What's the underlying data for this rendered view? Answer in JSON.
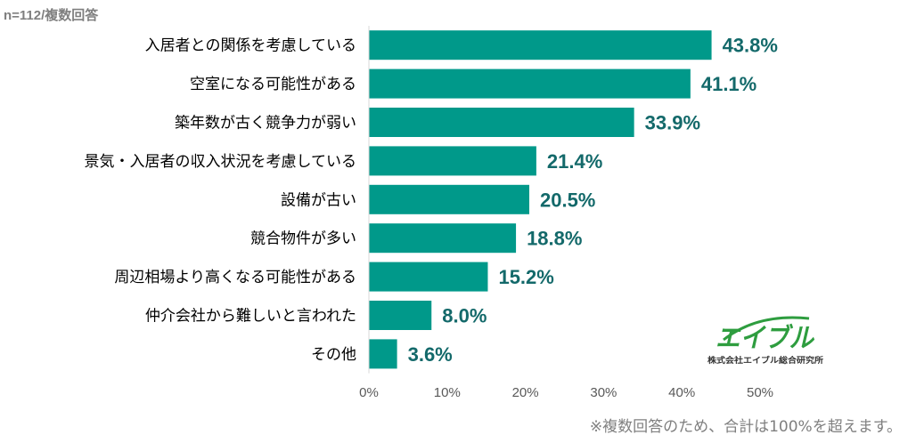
{
  "note_top": "n=112/複数回答",
  "footnote": "※複数回答のため、合計は100%を超えます。",
  "logo": {
    "name": "エイブル",
    "subtitle": "株式会社エイブル総合研究所"
  },
  "colors": {
    "bar": "#00998a",
    "value_label": "#13696a",
    "category_label": "#000000",
    "axis_label": "#595959",
    "axis_line": "#d9d9d9",
    "note": "#7f7f7f",
    "logo_green": "#2e9d3f"
  },
  "chart_data": {
    "type": "bar",
    "orientation": "horizontal",
    "categories": [
      "入居者との関係を考慮している",
      "空室になる可能性がある",
      "築年数が古く競争力が弱い",
      "景気・入居者の収入状況を考慮している",
      "設備が古い",
      "競合物件が多い",
      "周辺相場より高くなる可能性がある",
      "仲介会社から難しいと言われた",
      "その他"
    ],
    "values": [
      43.8,
      41.1,
      33.9,
      21.4,
      20.5,
      18.8,
      15.2,
      8.0,
      3.6
    ],
    "value_labels": [
      "43.8%",
      "41.1%",
      "33.9%",
      "21.4%",
      "20.5%",
      "18.8%",
      "15.2%",
      "8.0%",
      "3.6%"
    ],
    "xlim": [
      0,
      50
    ],
    "xticks": [
      0,
      10,
      20,
      30,
      40,
      50
    ],
    "xtick_labels": [
      "0%",
      "10%",
      "20%",
      "30%",
      "40%",
      "50%"
    ],
    "title": "",
    "xlabel": "",
    "ylabel": "",
    "grid": false,
    "legend": "none"
  }
}
